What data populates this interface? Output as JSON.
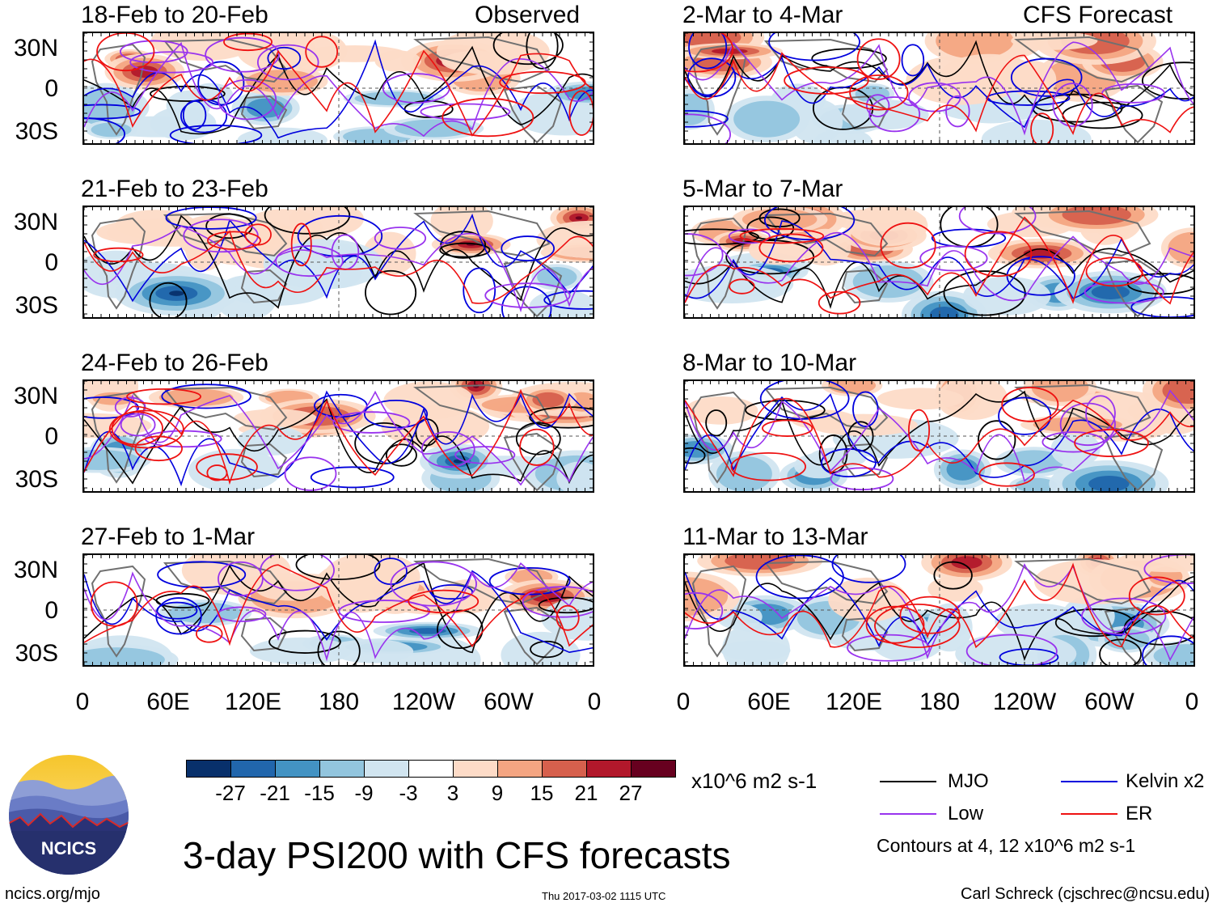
{
  "header": {
    "left_label": "Observed",
    "right_label": "CFS Forecast"
  },
  "panels_left": [
    {
      "title": "18-Feb to 20-Feb"
    },
    {
      "title": "21-Feb to 23-Feb"
    },
    {
      "title": "24-Feb to 26-Feb"
    },
    {
      "title": "27-Feb to 1-Mar"
    }
  ],
  "panels_right": [
    {
      "title": "2-Mar to 4-Mar"
    },
    {
      "title": "5-Mar to 7-Mar"
    },
    {
      "title": "8-Mar to 10-Mar"
    },
    {
      "title": "11-Mar to 13-Mar"
    }
  ],
  "chart_data": {
    "type": "heatmap",
    "variable": "3-day PSI200 anomaly",
    "lat_ticks": [
      "30N",
      "0",
      "30S"
    ],
    "lon_ticks": [
      "0",
      "60E",
      "120E",
      "180",
      "120W",
      "60W",
      "0"
    ],
    "colorbar": {
      "levels": [
        "-27",
        "-21",
        "-15",
        "-9",
        "-3",
        "3",
        "9",
        "15",
        "21",
        "27"
      ],
      "colors": [
        "#08306b",
        "#2166ac",
        "#4393c3",
        "#92c5de",
        "#d1e5f0",
        "#ffffff",
        "#fddbc7",
        "#f4a582",
        "#d6604d",
        "#b2182b",
        "#67001f"
      ],
      "units": "x10^6 m2 s-1"
    },
    "contour_series": [
      {
        "name": "MJO",
        "color": "#000000"
      },
      {
        "name": "Kelvin x2",
        "color": "#0000dd"
      },
      {
        "name": "Low",
        "color": "#9933ee"
      },
      {
        "name": "ER",
        "color": "#ee1111"
      }
    ],
    "contour_note": "Contours at 4, 12 x10^6 m2 s-1"
  },
  "title": "3-day PSI200 with CFS forecasts",
  "logo": {
    "text": "NCICS"
  },
  "footer": {
    "website": "ncics.org/mjo",
    "timestamp": "Thu 2017-03-02 1115 UTC",
    "author": "Carl Schreck (cjschrec@ncsu.edu)"
  }
}
